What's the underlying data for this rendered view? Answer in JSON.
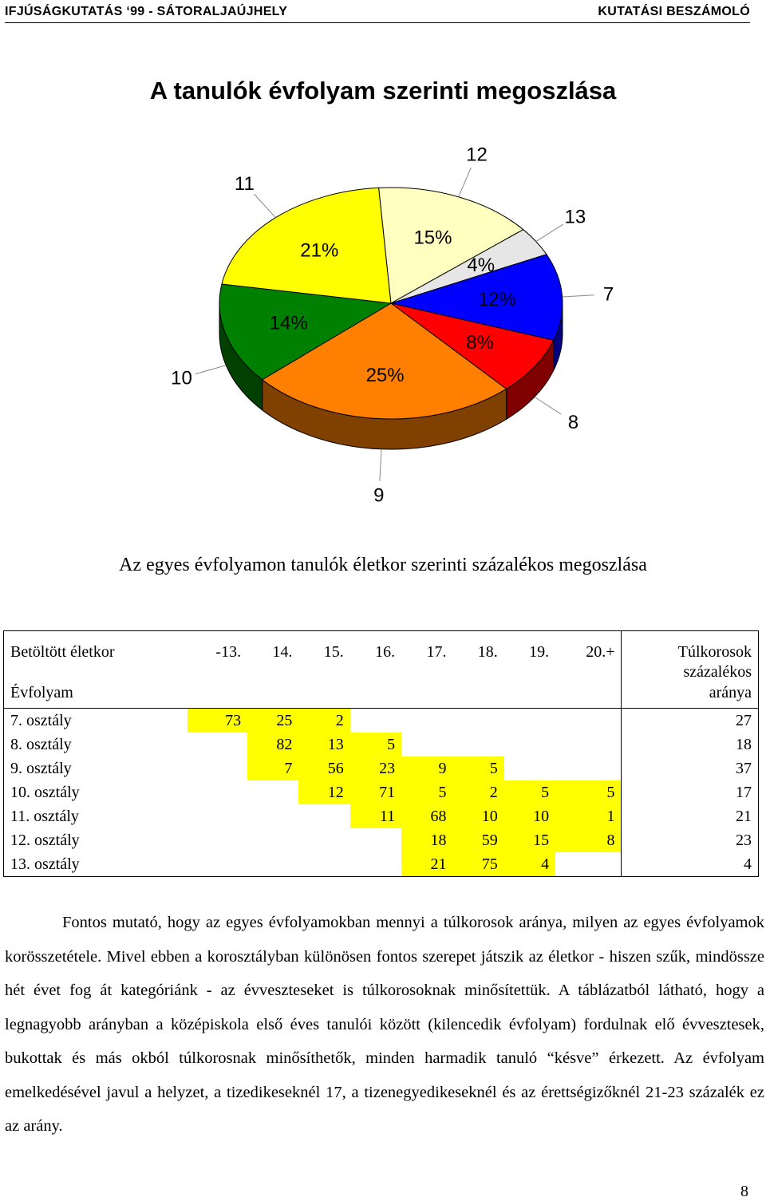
{
  "header": {
    "left": "IFJÚSÁGKUTATÁS ‘99 - SÁTORALJAÚJHELY",
    "right": "KUTATÁSI BESZÁMOLÓ"
  },
  "title": "A tanulók  évfolyam szerinti  megoszlása",
  "chart_data": {
    "type": "pie",
    "title": "A tanulók  évfolyam szerinti  megoszlása",
    "categories": [
      "7",
      "8",
      "9",
      "10",
      "11",
      "12",
      "13"
    ],
    "values": [
      12,
      8,
      25,
      14,
      21,
      15,
      4
    ],
    "labels": [
      "12%",
      "8%",
      "25%",
      "14%",
      "21%",
      "15%",
      "4%"
    ],
    "colors": [
      "#0000ff",
      "#ff0000",
      "#ff8000",
      "#008000",
      "#ffff00",
      "#ffffbf",
      "#e6e6e6"
    ],
    "three_d": true
  },
  "subtitle": "Az egyes évfolyamon tanulók életkor szerinti százalékos megoszlása",
  "table": {
    "corner_top": "Betöltött életkor",
    "corner_bottom": "Évfolyam",
    "age_columns": [
      "-13.",
      "14.",
      "15.",
      "16.",
      "17.",
      "18.",
      "19.",
      "20.+"
    ],
    "last_header": [
      "Túlkorosok",
      "százalékos",
      "aránya"
    ],
    "rows": [
      {
        "label": "7. osztály",
        "cells": [
          "73",
          "25",
          "2",
          "",
          "",
          "",
          "",
          ""
        ],
        "over": "27"
      },
      {
        "label": "8. osztály",
        "cells": [
          "",
          "82",
          "13",
          "5",
          "",
          "",
          "",
          ""
        ],
        "over": "18"
      },
      {
        "label": "9. osztály",
        "cells": [
          "",
          "7",
          "56",
          "23",
          "9",
          "5",
          "",
          ""
        ],
        "over": "37"
      },
      {
        "label": "10. osztály",
        "cells": [
          "",
          "",
          "12",
          "71",
          "5",
          "2",
          "5",
          "5"
        ],
        "over": "17"
      },
      {
        "label": "11. osztály",
        "cells": [
          "",
          "",
          "",
          "11",
          "68",
          "10",
          "10",
          "1"
        ],
        "over": "21"
      },
      {
        "label": "12. osztály",
        "cells": [
          "",
          "",
          "",
          "",
          "18",
          "59",
          "15",
          "8"
        ],
        "over": "23"
      },
      {
        "label": "13. osztály",
        "cells": [
          "",
          "",
          "",
          "",
          "21",
          "75",
          "4",
          ""
        ],
        "over": "4"
      }
    ]
  },
  "paragraph": "Fontos mutató, hogy az egyes évfolyamokban mennyi a túlkorosok aránya, milyen az egyes évfolyamok korösszetétele. Mivel ebben a korosztályban különösen fontos szerepet játszik az életkor - hiszen  szűk, mindössze hét évet fog át kategóriánk -  az évveszteseket is túlkorosoknak minősítettük. A táblázatból látható, hogy a legnagyobb arányban a középiskola első éves tanulói között (kilencedik évfolyam) fordulnak elő évvesztesek, bukottak és más okból túlkorosnak minősíthetők, minden harmadik tanuló  “késve”  érkezett. Az évfolyam emelkedésével javul a helyzet, a tizedikeseknél 17, a tizenegyedikeseknél és az érettségizőknél 21-23 százalék ez az arány.",
  "page_number": "8"
}
